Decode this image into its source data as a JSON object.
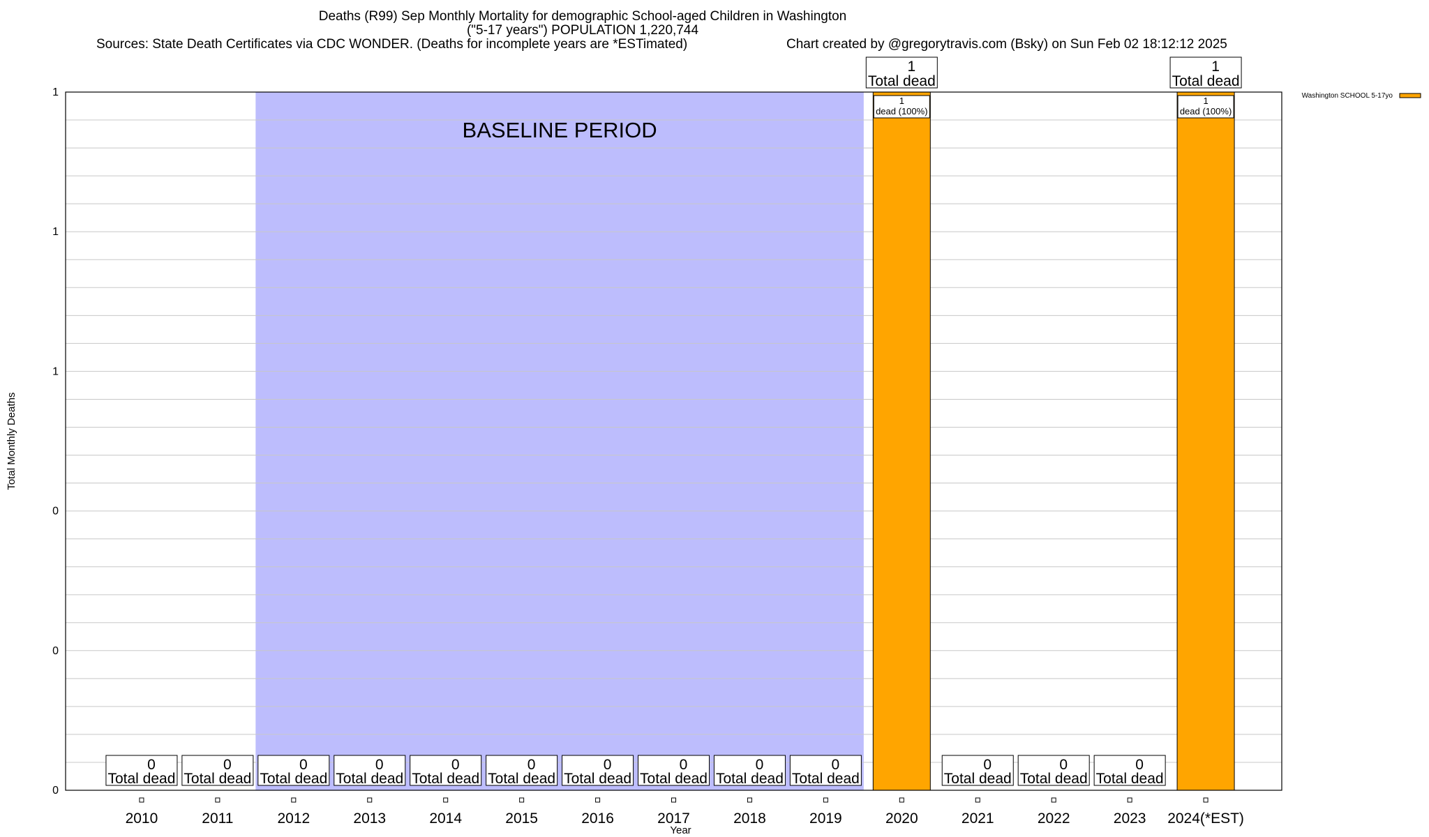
{
  "chart_data": {
    "type": "bar",
    "title": "Deaths (R99) Sep Monthly Mortality for demographic School-aged Children in Washington",
    "subtitle": "(\"5-17 years\") POPULATION 1,220,744",
    "sources": "Sources: State Death Certificates via CDC WONDER. (Deaths for incomplete years are *ESTimated)",
    "credit": "Chart created by @gregorytravis.com (Bsky) on Sun Feb 02 18:12:12 2025",
    "xlabel": "Year",
    "ylabel": "Total Monthly Deaths",
    "ylim": [
      0,
      1
    ],
    "ytick_labels": [
      "0",
      "0",
      "0",
      "1",
      "1",
      "1"
    ],
    "grid": true,
    "legend_position": "top-right",
    "categories": [
      "2010",
      "2011",
      "2012",
      "2013",
      "2014",
      "2015",
      "2016",
      "2017",
      "2018",
      "2019",
      "2020",
      "2021",
      "2022",
      "2023",
      "2024(*EST)"
    ],
    "series": [
      {
        "name": "Washington SCHOOL 5-17yo",
        "color": "#FFA500",
        "values": [
          0,
          0,
          0,
          0,
          0,
          0,
          0,
          0,
          0,
          0,
          1,
          0,
          0,
          0,
          1
        ],
        "bar_labels": [
          "",
          "",
          "",
          "",
          "",
          "",
          "",
          "",
          "",
          "",
          "1 dead (100%)",
          "",
          "",
          "",
          "1 dead (100%)"
        ]
      }
    ],
    "total_labels": [
      {
        "value": "0",
        "text": "Total dead"
      },
      {
        "value": "0",
        "text": "Total dead"
      },
      {
        "value": "0",
        "text": "Total dead"
      },
      {
        "value": "0",
        "text": "Total dead"
      },
      {
        "value": "0",
        "text": "Total dead"
      },
      {
        "value": "0",
        "text": "Total dead"
      },
      {
        "value": "0",
        "text": "Total dead"
      },
      {
        "value": "0",
        "text": "Total dead"
      },
      {
        "value": "0",
        "text": "Total dead"
      },
      {
        "value": "0",
        "text": "Total dead"
      },
      {
        "value": "1",
        "text": "Total dead"
      },
      {
        "value": "0",
        "text": "Total dead"
      },
      {
        "value": "0",
        "text": "Total dead"
      },
      {
        "value": "0",
        "text": "Total dead"
      },
      {
        "value": "1",
        "text": "Total dead"
      }
    ],
    "annotations": [
      {
        "text": "BASELINE PERIOD",
        "from": "2012",
        "to": "2019",
        "color": "#BDBDFD"
      }
    ]
  }
}
